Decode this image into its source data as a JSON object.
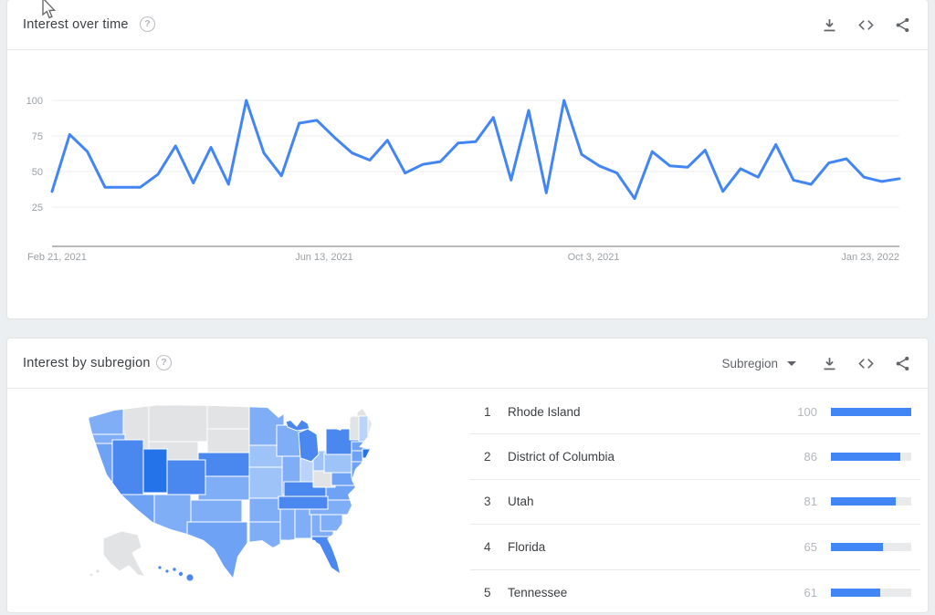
{
  "accent_color": "#4285f4",
  "cards": {
    "time": {
      "title": "Interest over time",
      "help_label": "?",
      "icons": [
        "download-icon",
        "embed-icon",
        "share-icon"
      ]
    },
    "subregion": {
      "title": "Interest by subregion",
      "help_label": "?",
      "picker_label": "Subregion",
      "icons": [
        "download-icon",
        "embed-icon",
        "share-icon"
      ]
    }
  },
  "chart_data": {
    "type": "line",
    "title": "Interest over time",
    "x_start": "Feb 21, 2021",
    "x_end": "Jan 23, 2022",
    "x_interval": "weekly",
    "x_tick_labels": [
      "Feb 21, 2021",
      "Jun 13, 2021",
      "Oct 3, 2021",
      "Jan 23, 2022"
    ],
    "y_tick_labels": [
      100,
      75,
      50,
      25
    ],
    "ylim": [
      0,
      100
    ],
    "grid": "horizontal",
    "legend": "none",
    "line_color": "#4285f4",
    "values": [
      36,
      76,
      64,
      39,
      39,
      39,
      48,
      68,
      42,
      67,
      41,
      100,
      63,
      47,
      84,
      86,
      74,
      63,
      58,
      72,
      49,
      55,
      57,
      70,
      71,
      88,
      44,
      93,
      35,
      100,
      62,
      54,
      49,
      31,
      64,
      54,
      53,
      65,
      36,
      52,
      46,
      69,
      44,
      41,
      56,
      59,
      46,
      43,
      45
    ]
  },
  "subregion_ranking": {
    "rows": [
      {
        "rank": "1",
        "name": "Rhode Island",
        "value": 100
      },
      {
        "rank": "2",
        "name": "District of Columbia",
        "value": 86
      },
      {
        "rank": "3",
        "name": "Utah",
        "value": 81
      },
      {
        "rank": "4",
        "name": "Florida",
        "value": 65
      },
      {
        "rank": "5",
        "name": "Tennessee",
        "value": 61
      }
    ],
    "bar_color": "#4285f4",
    "bar_track_color": "#e9eaec"
  },
  "map": {
    "tones": {
      "dark": "#2573e8",
      "high": "#4a87ee",
      "mid": "#6ea2f4",
      "base": "#7fadf6",
      "light": "#9ec3f9",
      "pale": "#b9d3fb",
      "none": "#e2e3e5"
    },
    "states": {
      "WA": "base",
      "OR": "base",
      "CA": "mid",
      "NV": "high",
      "ID": "none",
      "MT": "none",
      "WY": "none",
      "ND": "none",
      "SD": "none",
      "UT": "dark",
      "CO": "high",
      "AZ": "mid",
      "NM": "base",
      "OK": "base",
      "TX": "mid",
      "KS": "base",
      "NE": "high",
      "MN": "base",
      "IA": "light",
      "MO": "light",
      "WI": "base",
      "IL": "base",
      "MIU": "high",
      "MI": "high",
      "IN": "pale",
      "OH": "light",
      "KY": "high",
      "TN": "high",
      "AR": "base",
      "LA": "base",
      "MS": "base",
      "AL": "base",
      "GA": "base",
      "FL": "high",
      "SC": "base",
      "NC": "base",
      "VA": "mid",
      "WV": "none",
      "PA": "light",
      "NY": "high",
      "NJ": "mid",
      "MD": "mid",
      "VT": "none",
      "NH": "pale",
      "ME": "none",
      "MA": "mid",
      "CT": "mid",
      "RI": "dark",
      "AK": "none",
      "HI": "high"
    }
  }
}
